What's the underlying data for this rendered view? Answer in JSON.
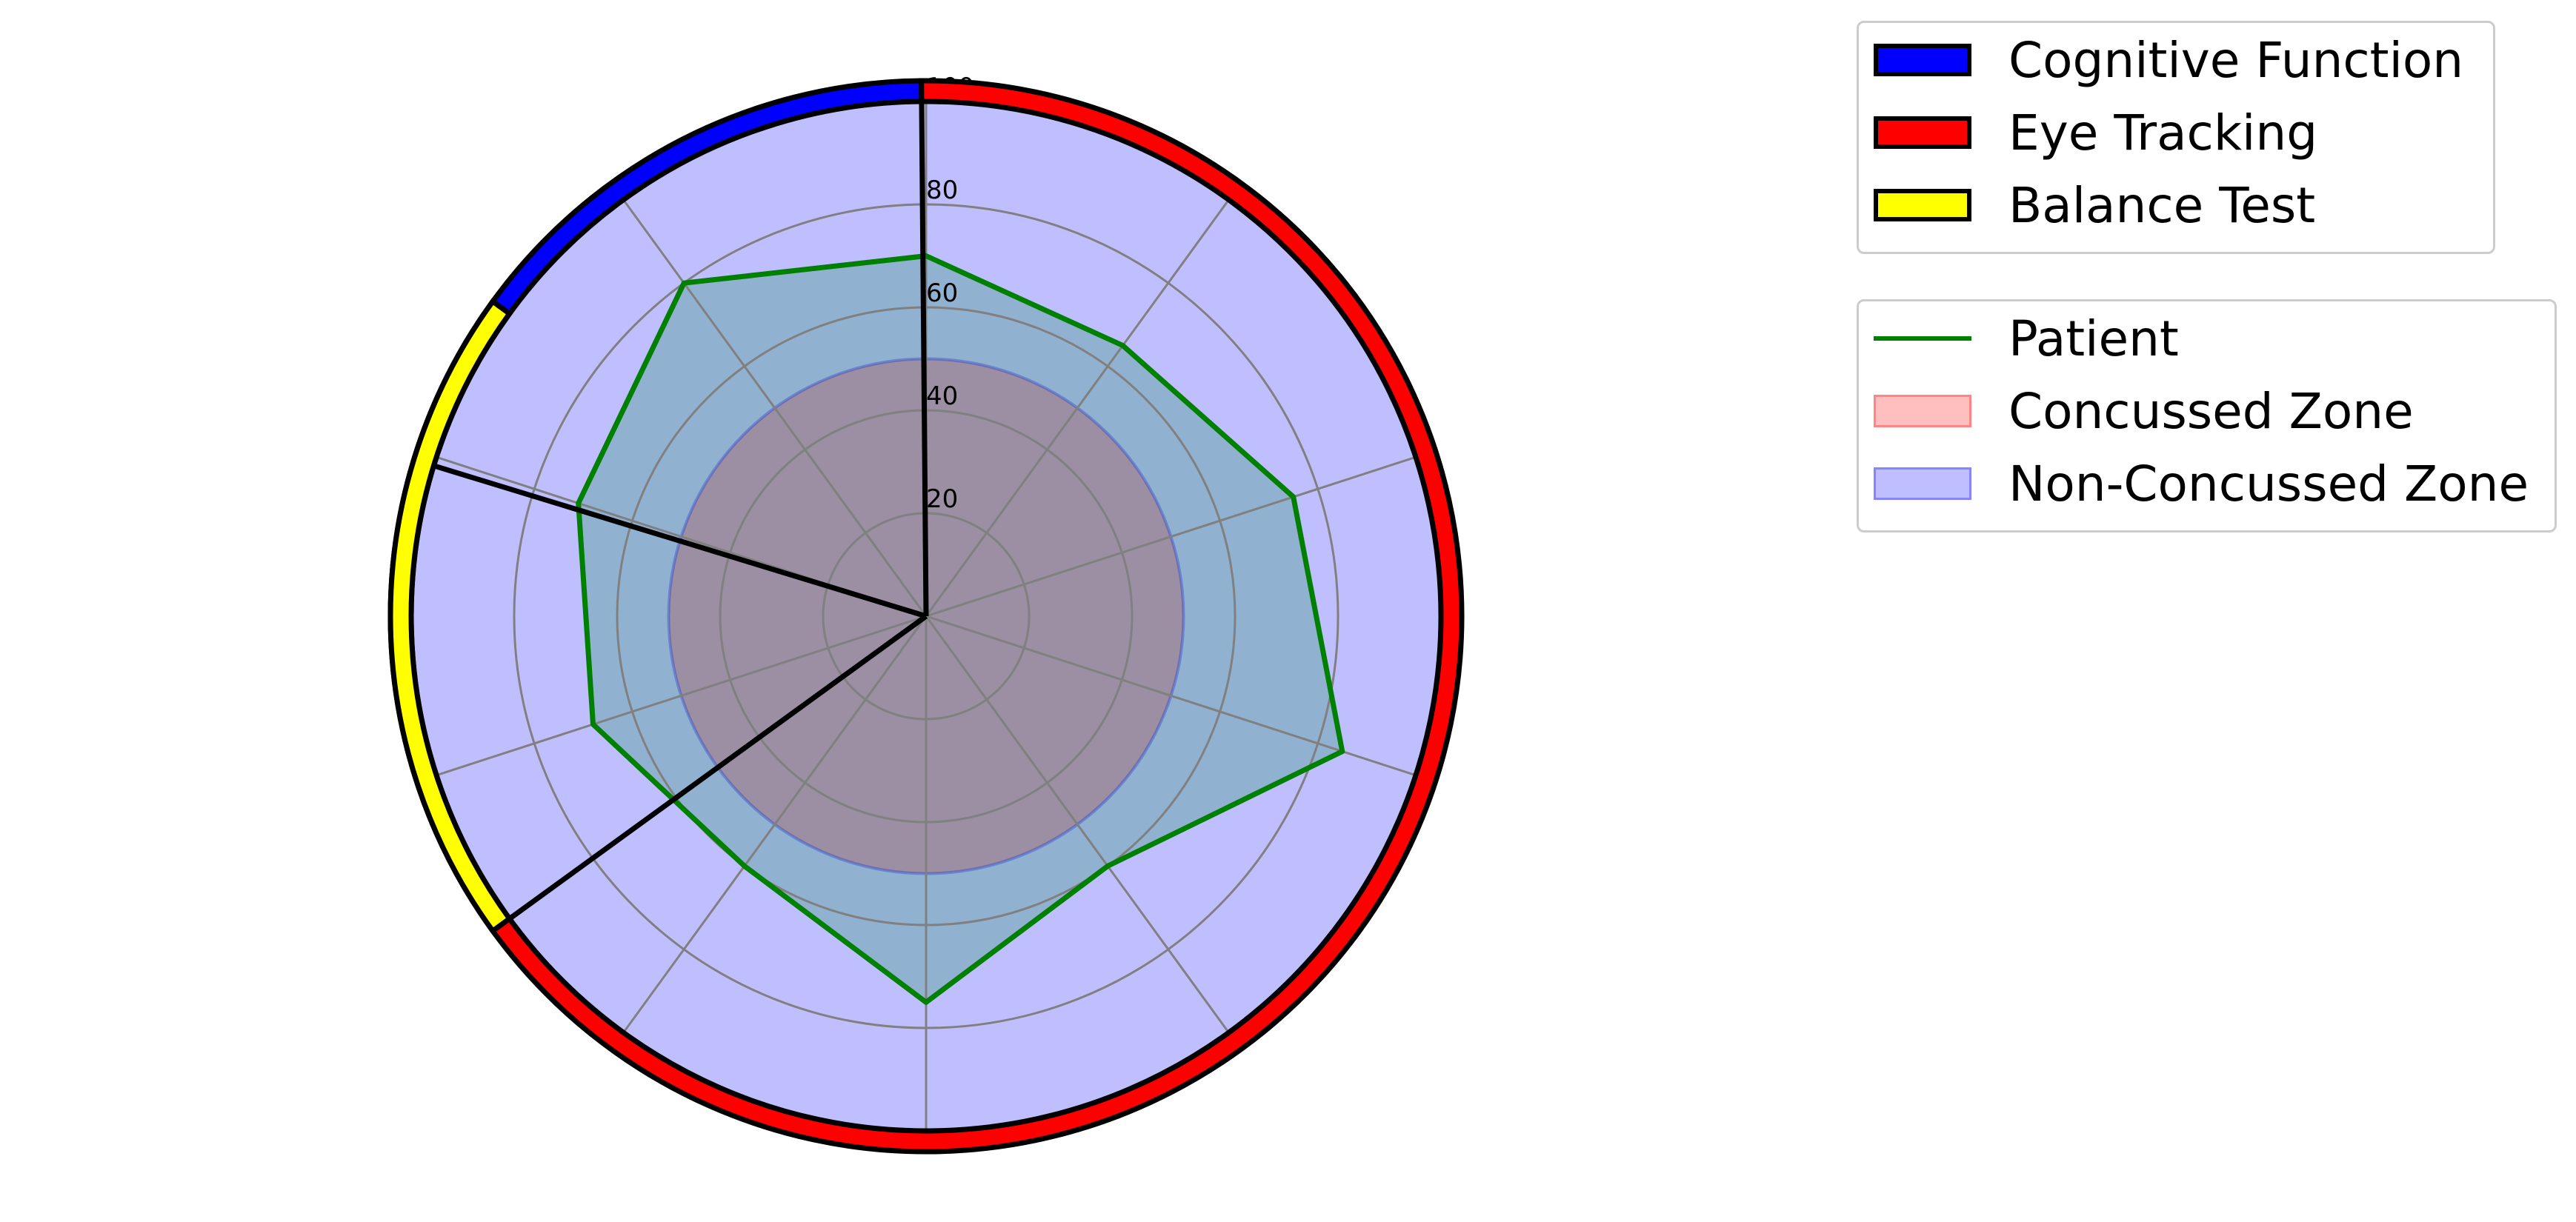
{
  "chart_data": {
    "type": "radar",
    "title": "",
    "radial_ticks": [
      "20",
      "40",
      "60",
      "80",
      "100"
    ],
    "rlim": [
      0,
      100
    ],
    "category_labels": [],
    "axes_count": 10,
    "series": [
      {
        "name": "Patient",
        "values": [
          70,
          65,
          75,
          85,
          60,
          75,
          60,
          68,
          71,
          80
        ]
      }
    ],
    "zones": [
      {
        "name": "Concussed Zone",
        "value": 50
      },
      {
        "name": "Non-Concussed Zone",
        "value": 100
      }
    ],
    "sectors": [
      {
        "name": "Cognitive Function",
        "from_deg": 90.5,
        "to_deg": 163
      },
      {
        "name": "Eye Tracking",
        "from_deg": -216,
        "to_deg": 90.5
      },
      {
        "name": "Balance Test",
        "from_deg": 144,
        "to_deg": 216
      }
    ],
    "dividers_deg": [
      163,
      216,
      90.5
    ]
  },
  "colors": {
    "patient": "#008000",
    "concussed_fill": "#ff0000",
    "non_concussed_fill": "#0000ff",
    "cognitive": "#0000ff",
    "eye_tracking": "#ff0000",
    "balance": "#ffff00",
    "grid": "#808080"
  },
  "legend_sections": {
    "items": [
      {
        "label": "Cognitive Function",
        "color": "#0000ff"
      },
      {
        "label": "Eye Tracking",
        "color": "#ff0000"
      },
      {
        "label": "Balance Test",
        "color": "#ffff00"
      }
    ]
  },
  "legend_series": {
    "patient": "Patient",
    "concussed": "Concussed Zone",
    "non_concussed": "Non-Concussed Zone"
  }
}
